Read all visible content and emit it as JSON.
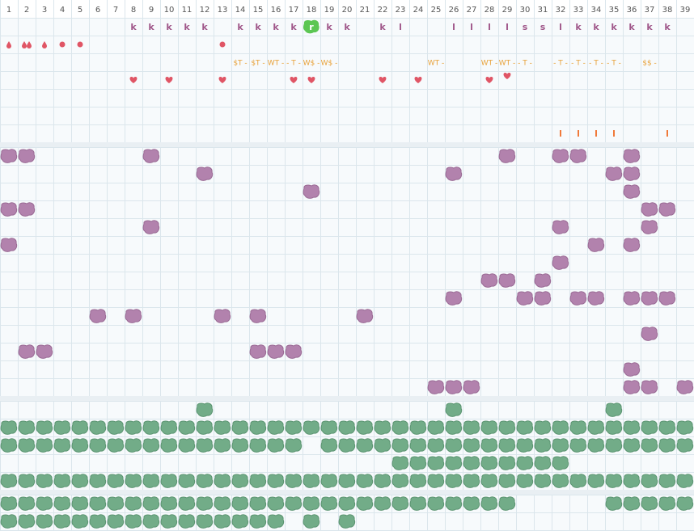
{
  "columns": [
    1,
    2,
    3,
    4,
    5,
    6,
    7,
    8,
    9,
    10,
    11,
    12,
    13,
    14,
    15,
    16,
    17,
    18,
    19,
    20,
    21,
    22,
    23,
    24,
    25,
    26,
    27,
    28,
    29,
    30,
    31,
    32,
    33,
    34,
    35,
    36,
    37,
    38,
    39
  ],
  "letter_row": [
    null,
    null,
    null,
    null,
    null,
    null,
    null,
    "k",
    "k",
    "k",
    "k",
    "k",
    null,
    "k",
    "k",
    "k",
    "k",
    "r",
    "k",
    "k",
    null,
    "k",
    "l",
    null,
    null,
    "l",
    "l",
    "l",
    "l",
    "s",
    "s",
    "l",
    "k",
    "k",
    "k",
    "k",
    "k",
    "k",
    null
  ],
  "annotation_row": [
    null,
    null,
    null,
    null,
    null,
    null,
    null,
    null,
    null,
    null,
    null,
    null,
    null,
    "$T -",
    "$T -",
    "WT -",
    "- T -",
    "W$ -",
    "W$ -",
    null,
    null,
    null,
    null,
    null,
    "WT -",
    null,
    null,
    "WT -",
    "WT -",
    "- T -",
    null,
    "- T -",
    "- T -",
    "- T -",
    "- T -",
    null,
    "$$ -",
    null,
    null
  ]
}
